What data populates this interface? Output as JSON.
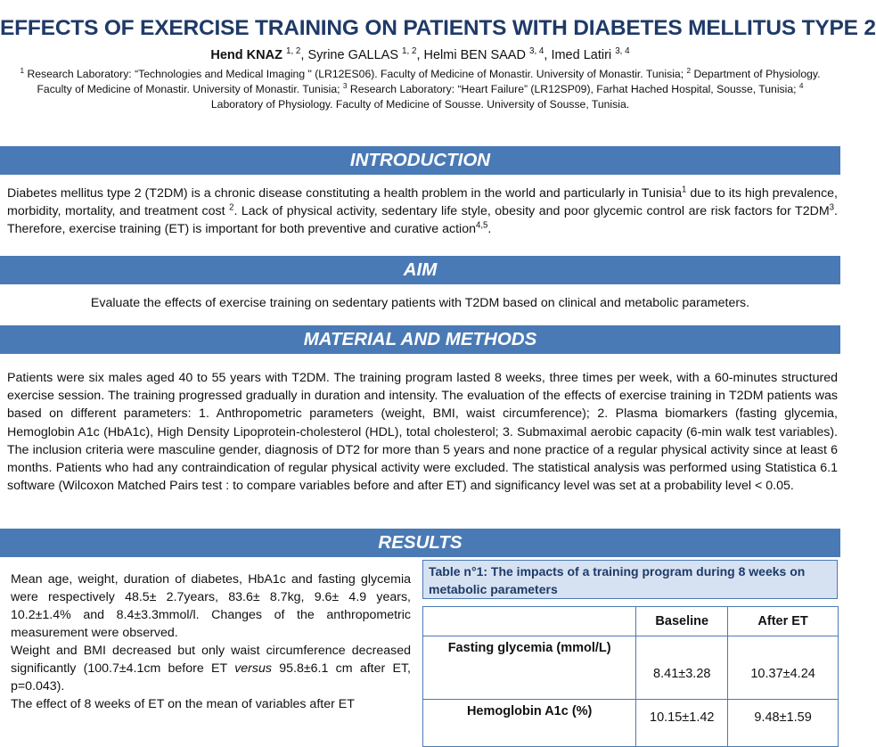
{
  "header": {
    "title": "EFFECTS OF EXERCISE TRAINING ON PATIENTS WITH DIABETES MELLITUS TYPE 2",
    "authors": [
      {
        "name": "Hend KNAZ",
        "sup": "1, 2",
        "sep": ", "
      },
      {
        "name": "Syrine GALLAS",
        "sup": "1, 2",
        "sep": ", "
      },
      {
        "name": "Helmi BEN SAAD",
        "sup": "3, 4",
        "sep": ", "
      },
      {
        "name": "Imed Latiri",
        "sup": "3, 4",
        "sep": ""
      }
    ],
    "affiliations": [
      {
        "sup": "1",
        "text": " Research Laboratory: “Technologies and Medical Imaging \" (LR12ES06). Faculty of Medicine of Monastir. University of Monastir. Tunisia; "
      },
      {
        "sup": "2",
        "text": " Department of Physiology. Faculty of Medicine of Monastir. University of Monastir. Tunisia; "
      },
      {
        "sup": "3",
        "text": " Research Laboratory: “Heart Failure” (LR12SP09), Farhat Hached Hospital, Sousse, Tunisia; "
      },
      {
        "sup": "4",
        "text": " Laboratory of Physiology. Faculty of Medicine of Sousse. University of Sousse, Tunisia."
      }
    ]
  },
  "introduction": {
    "heading": "INTRODUCTION",
    "parts": [
      {
        "t": "Diabetes mellitus type 2 (T2DM) is a chronic disease constituting a health problem in the world and particularly in Tunisia"
      },
      {
        "sup": "1"
      },
      {
        "t": " due to its high prevalence, morbidity, mortality, and treatment cost "
      },
      {
        "sup": "2"
      },
      {
        "t": ". Lack of physical activity, sedentary life style, obesity and poor glycemic control are risk factors for T2DM"
      },
      {
        "sup": "3"
      },
      {
        "t": ". Therefore, exercise training (ET) is important for both preventive and curative action"
      },
      {
        "sup": "4,5"
      },
      {
        "t": "."
      }
    ]
  },
  "aim": {
    "heading": "AIM",
    "text": "Evaluate the effects of exercise training on sedentary patients with T2DM based on clinical and metabolic parameters."
  },
  "methods": {
    "heading": "MATERIAL AND METHODS",
    "text": "Patients were six males aged 40 to 55 years with T2DM. The training program lasted 8 weeks, three times per week, with a 60-minutes structured exercise session. The training progressed gradually in duration and intensity. The evaluation of the effects of exercise training in T2DM patients was based on different parameters: 1. Anthropometric parameters (weight, BMI, waist circumference); 2. Plasma biomarkers (fasting glycemia, Hemoglobin A1c (HbA1c), High Density Lipoprotein-cholesterol (HDL), total cholesterol; 3. Submaximal aerobic capacity (6-min walk test variables). The inclusion criteria were masculine gender, diagnosis of DT2 for more than 5 years and none practice of a regular physical activity since at least 6 months. Patients who had any contraindication of regular physical activity were excluded. The statistical analysis was performed using  Statistica 6.1 software (Wilcoxon Matched Pairs test : to compare variables before and after ET) and significancy level was set at a probability level < 0.05."
  },
  "results": {
    "heading": "RESULTS",
    "p1": "Mean age, weight, duration of diabetes, HbA1c and fasting glycemia were respectively 48.5± 2.7years, 83.6± 8.7kg, 9.6± 4.9 years, 10.2±1.4% and 8.4±3.3mmol/l. Changes of the anthropometric measurement were observed.",
    "p2_a": "Weight and BMI decreased  but only waist circumference decreased significantly (100.7±4.1cm before ET ",
    "p2_versus": "versus",
    "p2_b": " 95.8±6.1 cm after ET, p=0.043).",
    "p3": "The effect of 8 weeks of ET on the mean of variables after ET",
    "table": {
      "caption": "Table n°1: The impacts of a training program during 8 weeks on metabolic parameters",
      "columns": [
        "",
        "Baseline",
        "After ET"
      ],
      "rows": [
        {
          "label": "Fasting glycemia (mmol/L)",
          "baseline": "8.41±3.28",
          "after": "10.37±4.24"
        },
        {
          "label": "Hemoglobin A1c (%)",
          "baseline": "10.15±1.42",
          "after": "9.48±1.59"
        }
      ]
    }
  }
}
